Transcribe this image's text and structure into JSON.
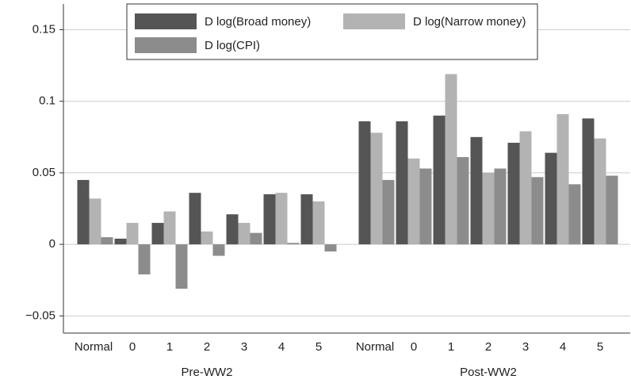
{
  "chart_data": {
    "type": "bar",
    "categories": [
      "Normal",
      "0",
      "1",
      "2",
      "3",
      "4",
      "5",
      "Normal",
      "0",
      "1",
      "2",
      "3",
      "4",
      "5"
    ],
    "group_labels": [
      "Pre-WW2",
      "Post-WW2"
    ],
    "series": [
      {
        "name": "D log(Broad money)",
        "color": "#555555",
        "values": [
          0.045,
          0.004,
          0.015,
          0.036,
          0.021,
          0.035,
          0.035,
          0.086,
          0.086,
          0.09,
          0.075,
          0.071,
          0.064,
          0.088
        ]
      },
      {
        "name": "D log(Narrow money)",
        "color": "#b3b3b3",
        "values": [
          0.032,
          0.015,
          0.023,
          0.009,
          0.015,
          0.036,
          0.03,
          0.078,
          0.06,
          0.119,
          0.05,
          0.079,
          0.091,
          0.074
        ]
      },
      {
        "name": "D log(CPI)",
        "color": "#8c8c8c",
        "values": [
          0.005,
          -0.021,
          -0.031,
          -0.008,
          0.008,
          0.001,
          -0.005,
          0.045,
          0.053,
          0.061,
          0.053,
          0.047,
          0.042,
          0.048
        ]
      }
    ],
    "ylim": [
      -0.062,
      0.168
    ],
    "yticks": [
      {
        "value": -0.05,
        "label": "−0.05"
      },
      0,
      0.05,
      0.1,
      0.15
    ],
    "grid": true,
    "legend": "top"
  }
}
